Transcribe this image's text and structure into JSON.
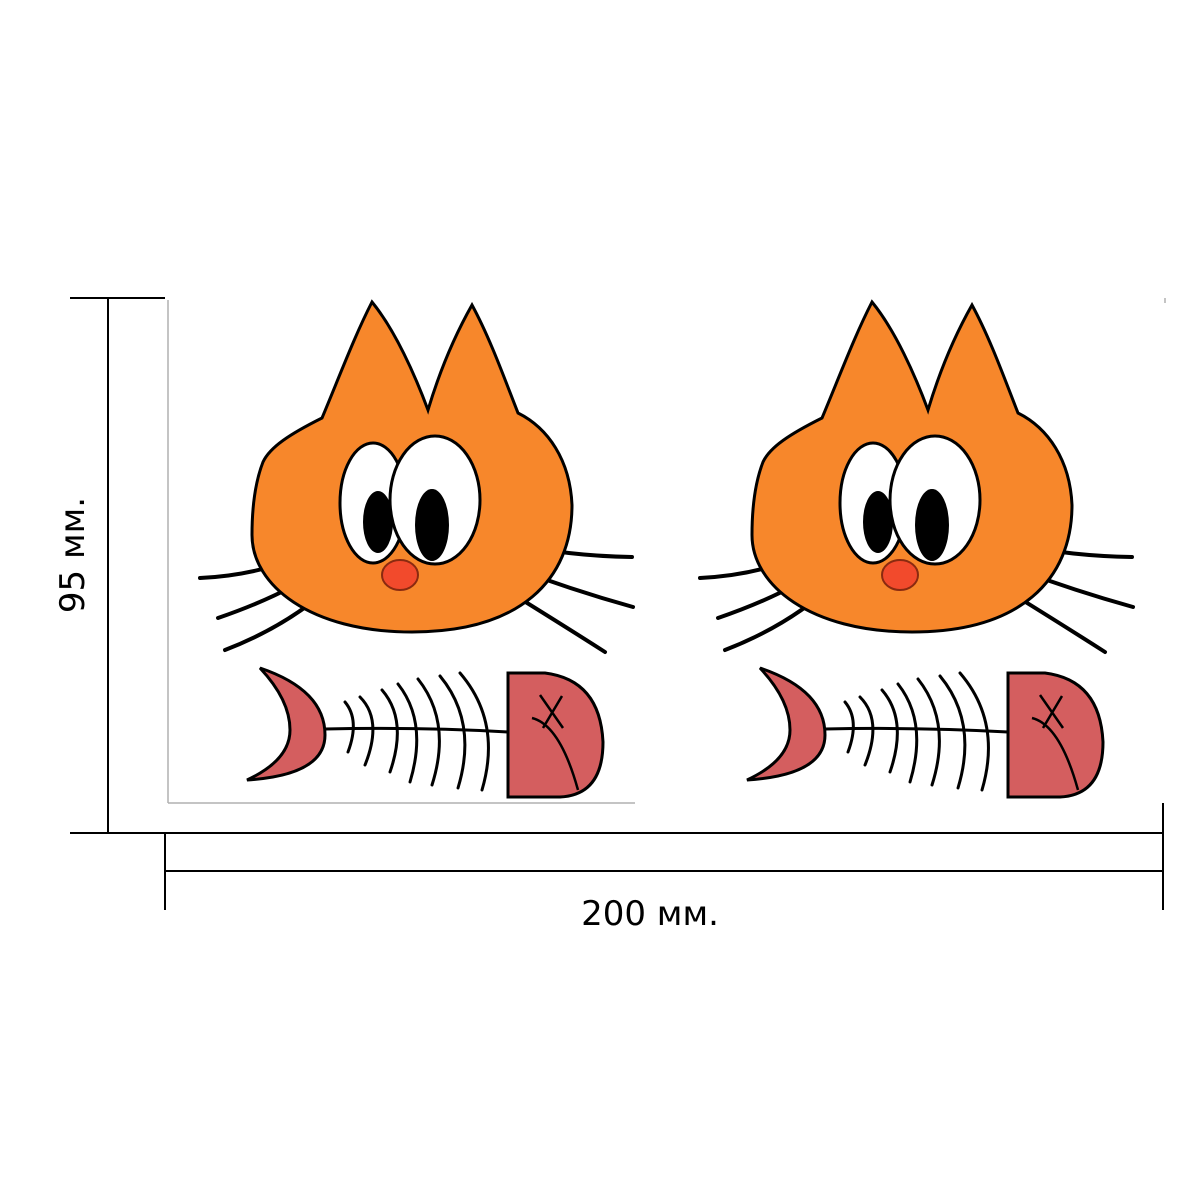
{
  "dimensions": {
    "width_label": "200 мм.",
    "height_label": "95 мм."
  },
  "colors": {
    "cat_fur": "#F7872B",
    "nose": "#F24A2C",
    "fish": "#D45E5F",
    "outline": "#000000",
    "guide": "#B0B0B0"
  },
  "stickers": [
    {
      "name": "cat-with-fish-bone-left"
    },
    {
      "name": "cat-with-fish-bone-right"
    }
  ]
}
